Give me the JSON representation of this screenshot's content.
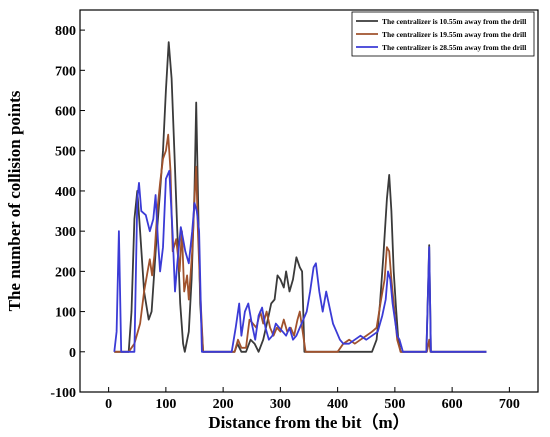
{
  "chart_data": {
    "type": "line",
    "title": "",
    "xlabel": "Distance from the bit（m）",
    "ylabel": "The number of collision points",
    "xlim": [
      -50,
      750
    ],
    "ylim": [
      -100,
      850
    ],
    "xticks": [
      "0",
      "100",
      "200",
      "300",
      "400",
      "500",
      "600",
      "700"
    ],
    "yticks": [
      "-100",
      "0",
      "100",
      "200",
      "300",
      "400",
      "500",
      "600",
      "700",
      "800"
    ],
    "legend_position": "top-right",
    "grid": false,
    "series": [
      {
        "name": "The centralizer is 10.55m away from the drill",
        "color": "#3a3a3a",
        "points": [
          [
            10,
            0
          ],
          [
            35,
            0
          ],
          [
            40,
            100
          ],
          [
            45,
            330
          ],
          [
            50,
            400
          ],
          [
            55,
            300
          ],
          [
            62,
            150
          ],
          [
            70,
            80
          ],
          [
            75,
            100
          ],
          [
            85,
            310
          ],
          [
            90,
            400
          ],
          [
            95,
            500
          ],
          [
            100,
            650
          ],
          [
            105,
            770
          ],
          [
            110,
            680
          ],
          [
            115,
            490
          ],
          [
            120,
            300
          ],
          [
            125,
            120
          ],
          [
            130,
            20
          ],
          [
            133,
            0
          ],
          [
            140,
            50
          ],
          [
            145,
            180
          ],
          [
            150,
            400
          ],
          [
            153,
            620
          ],
          [
            156,
            400
          ],
          [
            160,
            120
          ],
          [
            165,
            0
          ],
          [
            220,
            0
          ],
          [
            225,
            20
          ],
          [
            232,
            0
          ],
          [
            240,
            0
          ],
          [
            248,
            30
          ],
          [
            255,
            20
          ],
          [
            262,
            0
          ],
          [
            270,
            30
          ],
          [
            278,
            80
          ],
          [
            284,
            120
          ],
          [
            290,
            130
          ],
          [
            295,
            190
          ],
          [
            300,
            180
          ],
          [
            306,
            160
          ],
          [
            310,
            200
          ],
          [
            316,
            150
          ],
          [
            322,
            180
          ],
          [
            328,
            235
          ],
          [
            334,
            210
          ],
          [
            338,
            200
          ],
          [
            342,
            0
          ],
          [
            460,
            0
          ],
          [
            468,
            30
          ],
          [
            474,
            120
          ],
          [
            480,
            240
          ],
          [
            486,
            380
          ],
          [
            490,
            440
          ],
          [
            494,
            350
          ],
          [
            498,
            200
          ],
          [
            502,
            110
          ],
          [
            506,
            30
          ],
          [
            510,
            0
          ],
          [
            555,
            0
          ],
          [
            560,
            265
          ],
          [
            563,
            0
          ],
          [
            660,
            0
          ]
        ]
      },
      {
        "name": "The centralizer is 19.55m away from the drill",
        "color": "#a0522d",
        "points": [
          [
            10,
            0
          ],
          [
            35,
            0
          ],
          [
            45,
            20
          ],
          [
            55,
            70
          ],
          [
            62,
            150
          ],
          [
            68,
            200
          ],
          [
            72,
            230
          ],
          [
            76,
            190
          ],
          [
            80,
            240
          ],
          [
            85,
            350
          ],
          [
            90,
            420
          ],
          [
            95,
            480
          ],
          [
            100,
            500
          ],
          [
            104,
            540
          ],
          [
            108,
            450
          ],
          [
            112,
            250
          ],
          [
            118,
            280
          ],
          [
            124,
            200
          ],
          [
            128,
            300
          ],
          [
            132,
            150
          ],
          [
            137,
            190
          ],
          [
            140,
            130
          ],
          [
            146,
            250
          ],
          [
            150,
            380
          ],
          [
            153,
            460
          ],
          [
            156,
            300
          ],
          [
            160,
            150
          ],
          [
            165,
            0
          ],
          [
            220,
            0
          ],
          [
            226,
            30
          ],
          [
            232,
            10
          ],
          [
            240,
            10
          ],
          [
            246,
            80
          ],
          [
            252,
            70
          ],
          [
            258,
            60
          ],
          [
            265,
            100
          ],
          [
            270,
            70
          ],
          [
            276,
            100
          ],
          [
            282,
            60
          ],
          [
            288,
            40
          ],
          [
            294,
            60
          ],
          [
            300,
            50
          ],
          [
            306,
            80
          ],
          [
            312,
            50
          ],
          [
            318,
            60
          ],
          [
            324,
            40
          ],
          [
            330,
            80
          ],
          [
            334,
            100
          ],
          [
            338,
            60
          ],
          [
            344,
            0
          ],
          [
            400,
            0
          ],
          [
            410,
            20
          ],
          [
            420,
            30
          ],
          [
            430,
            20
          ],
          [
            440,
            30
          ],
          [
            450,
            40
          ],
          [
            460,
            50
          ],
          [
            468,
            60
          ],
          [
            476,
            130
          ],
          [
            482,
            180
          ],
          [
            486,
            260
          ],
          [
            490,
            250
          ],
          [
            494,
            180
          ],
          [
            498,
            120
          ],
          [
            504,
            30
          ],
          [
            510,
            0
          ],
          [
            556,
            0
          ],
          [
            560,
            30
          ],
          [
            562,
            0
          ],
          [
            660,
            0
          ]
        ]
      },
      {
        "name": "The centralizer is 28.55m away from the drill",
        "color": "#3b3bd6",
        "points": [
          [
            10,
            0
          ],
          [
            14,
            50
          ],
          [
            18,
            300
          ],
          [
            22,
            0
          ],
          [
            45,
            0
          ],
          [
            50,
            380
          ],
          [
            53,
            420
          ],
          [
            57,
            350
          ],
          [
            65,
            340
          ],
          [
            72,
            300
          ],
          [
            78,
            330
          ],
          [
            82,
            390
          ],
          [
            86,
            280
          ],
          [
            90,
            200
          ],
          [
            95,
            260
          ],
          [
            100,
            430
          ],
          [
            106,
            450
          ],
          [
            112,
            290
          ],
          [
            116,
            150
          ],
          [
            120,
            220
          ],
          [
            126,
            310
          ],
          [
            130,
            280
          ],
          [
            134,
            250
          ],
          [
            140,
            220
          ],
          [
            146,
            300
          ],
          [
            150,
            370
          ],
          [
            154,
            350
          ],
          [
            158,
            300
          ],
          [
            163,
            0
          ],
          [
            215,
            0
          ],
          [
            222,
            60
          ],
          [
            228,
            120
          ],
          [
            232,
            40
          ],
          [
            238,
            100
          ],
          [
            244,
            120
          ],
          [
            250,
            70
          ],
          [
            256,
            30
          ],
          [
            262,
            90
          ],
          [
            268,
            110
          ],
          [
            274,
            60
          ],
          [
            280,
            30
          ],
          [
            286,
            40
          ],
          [
            292,
            70
          ],
          [
            298,
            60
          ],
          [
            304,
            50
          ],
          [
            310,
            40
          ],
          [
            316,
            60
          ],
          [
            322,
            30
          ],
          [
            328,
            40
          ],
          [
            334,
            60
          ],
          [
            340,
            80
          ],
          [
            346,
            100
          ],
          [
            352,
            150
          ],
          [
            358,
            210
          ],
          [
            362,
            220
          ],
          [
            368,
            150
          ],
          [
            374,
            100
          ],
          [
            380,
            150
          ],
          [
            386,
            110
          ],
          [
            392,
            70
          ],
          [
            398,
            50
          ],
          [
            404,
            30
          ],
          [
            410,
            20
          ],
          [
            420,
            20
          ],
          [
            430,
            30
          ],
          [
            440,
            40
          ],
          [
            450,
            30
          ],
          [
            460,
            40
          ],
          [
            470,
            50
          ],
          [
            478,
            90
          ],
          [
            484,
            130
          ],
          [
            488,
            200
          ],
          [
            492,
            180
          ],
          [
            496,
            120
          ],
          [
            500,
            80
          ],
          [
            504,
            40
          ],
          [
            508,
            30
          ],
          [
            514,
            0
          ],
          [
            555,
            0
          ],
          [
            560,
            260
          ],
          [
            563,
            0
          ],
          [
            660,
            0
          ]
        ]
      }
    ]
  }
}
